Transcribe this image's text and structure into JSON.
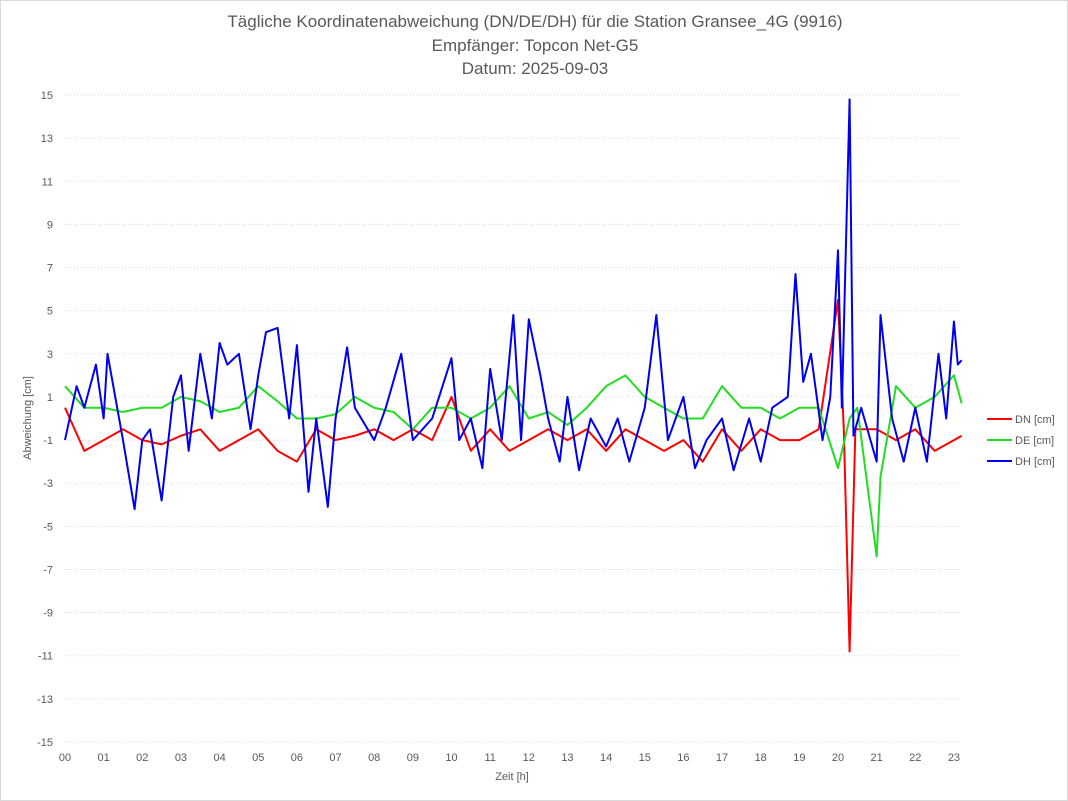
{
  "chart_data": {
    "type": "line",
    "title": "Tägliche Koordinatenabweichung (DN/DE/DH) für die Station Gransee_4G (9916)",
    "subtitle1": "Empfänger: Topcon Net-G5",
    "subtitle2": "Datum: 2025-09-03",
    "xlabel": "Zeit [h]",
    "ylabel": "Abweichung [cm]",
    "xlim": [
      0,
      23.25
    ],
    "ylim": [
      -15,
      15
    ],
    "yticks": [
      "-15",
      "-13",
      "-11",
      "-9",
      "-7",
      "-5",
      "-3",
      "-1",
      "1",
      "3",
      "5",
      "7",
      "9",
      "11",
      "13",
      "15"
    ],
    "xticks": [
      "00",
      "01",
      "02",
      "03",
      "04",
      "05",
      "06",
      "07",
      "08",
      "09",
      "10",
      "11",
      "12",
      "13",
      "14",
      "15",
      "16",
      "17",
      "18",
      "19",
      "20",
      "21",
      "22",
      "23"
    ],
    "grid": true,
    "legend": "right",
    "series": [
      {
        "name": "DN [cm]",
        "color": "#ff0000",
        "points": [
          [
            0,
            0.5
          ],
          [
            0.5,
            -1.5
          ],
          [
            1,
            -1
          ],
          [
            1.5,
            -0.5
          ],
          [
            2,
            -1
          ],
          [
            2.5,
            -1.2
          ],
          [
            3,
            -0.8
          ],
          [
            3.5,
            -0.5
          ],
          [
            4,
            -1.5
          ],
          [
            4.5,
            -1
          ],
          [
            5,
            -0.5
          ],
          [
            5.5,
            -1.5
          ],
          [
            6,
            -2
          ],
          [
            6.5,
            -0.5
          ],
          [
            7,
            -1
          ],
          [
            7.5,
            -0.8
          ],
          [
            8,
            -0.5
          ],
          [
            8.5,
            -1
          ],
          [
            9,
            -0.5
          ],
          [
            9.5,
            -1
          ],
          [
            10,
            1
          ],
          [
            10.5,
            -1.5
          ],
          [
            11,
            -0.5
          ],
          [
            11.5,
            -1.5
          ],
          [
            12,
            -1
          ],
          [
            12.5,
            -0.5
          ],
          [
            13,
            -1
          ],
          [
            13.5,
            -0.5
          ],
          [
            14,
            -1.5
          ],
          [
            14.5,
            -0.5
          ],
          [
            15,
            -1
          ],
          [
            15.5,
            -1.5
          ],
          [
            16,
            -1
          ],
          [
            16.5,
            -2
          ],
          [
            17,
            -0.5
          ],
          [
            17.5,
            -1.5
          ],
          [
            18,
            -0.5
          ],
          [
            18.5,
            -1
          ],
          [
            19,
            -1
          ],
          [
            19.5,
            -0.5
          ],
          [
            20,
            5.5
          ],
          [
            20.15,
            -0.5
          ],
          [
            20.3,
            -10.8
          ],
          [
            20.45,
            -0.5
          ],
          [
            21,
            -0.5
          ],
          [
            21.5,
            -1
          ],
          [
            22,
            -0.5
          ],
          [
            22.5,
            -1.5
          ],
          [
            23,
            -1
          ],
          [
            23.2,
            -0.8
          ]
        ]
      },
      {
        "name": "DE [cm]",
        "color": "#22dd22",
        "points": [
          [
            0,
            1.5
          ],
          [
            0.5,
            0.5
          ],
          [
            1,
            0.5
          ],
          [
            1.5,
            0.3
          ],
          [
            2,
            0.5
          ],
          [
            2.5,
            0.5
          ],
          [
            3,
            1
          ],
          [
            3.5,
            0.8
          ],
          [
            4,
            0.3
          ],
          [
            4.5,
            0.5
          ],
          [
            5,
            1.5
          ],
          [
            5.5,
            0.8
          ],
          [
            6,
            0
          ],
          [
            6.5,
            0
          ],
          [
            7,
            0.2
          ],
          [
            7.5,
            1
          ],
          [
            8,
            0.5
          ],
          [
            8.5,
            0.3
          ],
          [
            9,
            -0.5
          ],
          [
            9.5,
            0.5
          ],
          [
            10,
            0.5
          ],
          [
            10.5,
            0
          ],
          [
            11,
            0.5
          ],
          [
            11.5,
            1.5
          ],
          [
            12,
            0
          ],
          [
            12.5,
            0.3
          ],
          [
            13,
            -0.3
          ],
          [
            13.5,
            0.5
          ],
          [
            14,
            1.5
          ],
          [
            14.5,
            2
          ],
          [
            15,
            1
          ],
          [
            15.5,
            0.5
          ],
          [
            16,
            0
          ],
          [
            16.5,
            0
          ],
          [
            17,
            1.5
          ],
          [
            17.5,
            0.5
          ],
          [
            18,
            0.5
          ],
          [
            18.5,
            0
          ],
          [
            19,
            0.5
          ],
          [
            19.5,
            0.5
          ],
          [
            20,
            -2.3
          ],
          [
            20.3,
            0
          ],
          [
            20.5,
            0.5
          ],
          [
            21,
            -6.4
          ],
          [
            21.1,
            -2.7
          ],
          [
            21.5,
            1.5
          ],
          [
            22,
            0.5
          ],
          [
            22.5,
            1
          ],
          [
            23,
            2
          ],
          [
            23.2,
            0.7
          ]
        ]
      },
      {
        "name": "DH [cm]",
        "color": "#0000ee",
        "points": [
          [
            0,
            -1
          ],
          [
            0.3,
            1.5
          ],
          [
            0.5,
            0.5
          ],
          [
            0.8,
            2.5
          ],
          [
            1,
            0
          ],
          [
            1.1,
            3
          ],
          [
            1.5,
            -1
          ],
          [
            1.8,
            -4.2
          ],
          [
            2,
            -1
          ],
          [
            2.2,
            -0.5
          ],
          [
            2.5,
            -3.8
          ],
          [
            2.8,
            1
          ],
          [
            3,
            2
          ],
          [
            3.2,
            -1.5
          ],
          [
            3.5,
            3
          ],
          [
            3.8,
            0
          ],
          [
            4,
            3.5
          ],
          [
            4.2,
            2.5
          ],
          [
            4.5,
            3
          ],
          [
            4.8,
            -0.5
          ],
          [
            5,
            2
          ],
          [
            5.2,
            4
          ],
          [
            5.5,
            4.2
          ],
          [
            5.8,
            0
          ],
          [
            6,
            3.4
          ],
          [
            6.3,
            -3.4
          ],
          [
            6.5,
            0
          ],
          [
            6.8,
            -4.1
          ],
          [
            7,
            0
          ],
          [
            7.3,
            3.3
          ],
          [
            7.5,
            0.5
          ],
          [
            8,
            -1
          ],
          [
            8.3,
            0.5
          ],
          [
            8.7,
            3
          ],
          [
            9,
            -1
          ],
          [
            9.5,
            0
          ],
          [
            10,
            2.8
          ],
          [
            10.2,
            -1
          ],
          [
            10.5,
            0
          ],
          [
            10.8,
            -2.3
          ],
          [
            11,
            2.3
          ],
          [
            11.3,
            -1
          ],
          [
            11.6,
            4.8
          ],
          [
            11.8,
            -1
          ],
          [
            12,
            4.6
          ],
          [
            12.3,
            2
          ],
          [
            12.5,
            0
          ],
          [
            12.8,
            -2
          ],
          [
            13,
            1
          ],
          [
            13.3,
            -2.4
          ],
          [
            13.6,
            0
          ],
          [
            14,
            -1.3
          ],
          [
            14.3,
            0
          ],
          [
            14.6,
            -2
          ],
          [
            15,
            0.5
          ],
          [
            15.3,
            4.8
          ],
          [
            15.6,
            -1
          ],
          [
            16,
            1
          ],
          [
            16.3,
            -2.3
          ],
          [
            16.6,
            -1
          ],
          [
            17,
            0
          ],
          [
            17.3,
            -2.4
          ],
          [
            17.7,
            0
          ],
          [
            18,
            -2
          ],
          [
            18.3,
            0.5
          ],
          [
            18.7,
            1
          ],
          [
            18.9,
            6.7
          ],
          [
            19.1,
            1.7
          ],
          [
            19.3,
            3
          ],
          [
            19.6,
            -1
          ],
          [
            19.8,
            1
          ],
          [
            20,
            7.8
          ],
          [
            20.1,
            0.5
          ],
          [
            20.3,
            14.8
          ],
          [
            20.4,
            -0.8
          ],
          [
            20.6,
            0.5
          ],
          [
            21,
            -2
          ],
          [
            21.1,
            4.8
          ],
          [
            21.4,
            0
          ],
          [
            21.7,
            -2
          ],
          [
            22,
            0.5
          ],
          [
            22.3,
            -2
          ],
          [
            22.6,
            3
          ],
          [
            22.8,
            0
          ],
          [
            23,
            4.5
          ],
          [
            23.1,
            2.5
          ],
          [
            23.2,
            2.7
          ]
        ]
      }
    ]
  }
}
